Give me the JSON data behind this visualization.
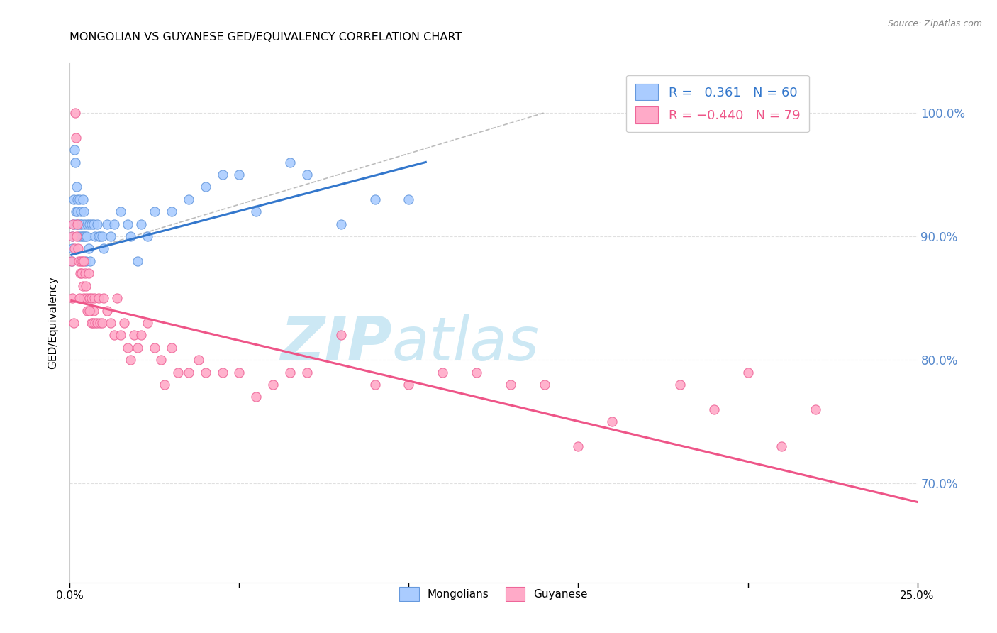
{
  "title": "MONGOLIAN VS GUYANESE GED/EQUIVALENCY CORRELATION CHART",
  "source": "Source: ZipAtlas.com",
  "ylabel": "GED/Equivalency",
  "yticks": [
    70.0,
    80.0,
    90.0,
    100.0
  ],
  "ytick_labels": [
    "70.0%",
    "80.0%",
    "90.0%",
    "100.0%"
  ],
  "xlim": [
    0.0,
    25.0
  ],
  "ylim": [
    62.0,
    104.0
  ],
  "mongolian_R": 0.361,
  "mongolian_N": 60,
  "guyanese_R": -0.44,
  "guyanese_N": 79,
  "mongolian_color": "#aaccff",
  "guyanese_color": "#ffaac8",
  "mongolian_edge_color": "#6699dd",
  "guyanese_edge_color": "#ee6699",
  "mongolian_line_color": "#3377cc",
  "guyanese_line_color": "#ee5588",
  "background_color": "#ffffff",
  "grid_color": "#dddddd",
  "watermark_color": "#cce8f4",
  "mongolian_line": {
    "x0": 0.05,
    "x1": 10.5,
    "y0": 88.5,
    "y1": 96.0
  },
  "guyanese_line": {
    "x0": 0.05,
    "x1": 25.0,
    "y0": 84.8,
    "y1": 68.5
  },
  "dash_line": {
    "x0": 0.05,
    "x1": 14.0,
    "y0": 88.5,
    "y1": 100.0
  },
  "mongolian_x": [
    0.05,
    0.07,
    0.08,
    0.1,
    0.12,
    0.13,
    0.15,
    0.17,
    0.18,
    0.2,
    0.22,
    0.23,
    0.25,
    0.27,
    0.28,
    0.3,
    0.32,
    0.33,
    0.35,
    0.37,
    0.38,
    0.4,
    0.42,
    0.43,
    0.45,
    0.47,
    0.5,
    0.52,
    0.55,
    0.57,
    0.6,
    0.65,
    0.7,
    0.75,
    0.8,
    0.85,
    0.9,
    0.95,
    1.0,
    1.1,
    1.2,
    1.3,
    1.5,
    1.7,
    1.8,
    2.0,
    2.1,
    2.3,
    2.5,
    3.0,
    3.5,
    4.0,
    4.5,
    5.0,
    5.5,
    6.5,
    7.0,
    8.0,
    9.0,
    10.0
  ],
  "mongolian_y": [
    88,
    90,
    89,
    91,
    93,
    97,
    96,
    92,
    91,
    94,
    93,
    92,
    91,
    90,
    93,
    91,
    90,
    92,
    91,
    90,
    93,
    92,
    90,
    91,
    90,
    88,
    90,
    91,
    89,
    91,
    88,
    91,
    91,
    90,
    91,
    90,
    90,
    90,
    89,
    91,
    90,
    91,
    92,
    91,
    90,
    88,
    91,
    90,
    92,
    92,
    93,
    94,
    95,
    95,
    92,
    96,
    95,
    91,
    93,
    93
  ],
  "guyanese_x": [
    0.05,
    0.08,
    0.1,
    0.13,
    0.15,
    0.17,
    0.2,
    0.22,
    0.25,
    0.27,
    0.3,
    0.32,
    0.35,
    0.37,
    0.38,
    0.4,
    0.42,
    0.45,
    0.47,
    0.5,
    0.52,
    0.55,
    0.57,
    0.6,
    0.63,
    0.65,
    0.68,
    0.7,
    0.73,
    0.75,
    0.8,
    0.85,
    0.9,
    0.95,
    1.0,
    1.1,
    1.2,
    1.3,
    1.4,
    1.5,
    1.6,
    1.7,
    1.8,
    1.9,
    2.0,
    2.1,
    2.3,
    2.5,
    2.7,
    3.0,
    3.2,
    3.5,
    3.8,
    4.0,
    4.5,
    5.0,
    5.5,
    6.0,
    7.0,
    8.0,
    9.0,
    10.0,
    11.0,
    12.0,
    13.0,
    14.0,
    15.0,
    16.0,
    18.0,
    19.0,
    20.0,
    21.0,
    22.0,
    0.07,
    0.12,
    0.28,
    0.58,
    2.8,
    6.5
  ],
  "guyanese_y": [
    88,
    90,
    91,
    89,
    100,
    98,
    90,
    91,
    89,
    88,
    87,
    88,
    87,
    88,
    86,
    85,
    88,
    87,
    86,
    85,
    84,
    87,
    85,
    84,
    83,
    85,
    83,
    84,
    85,
    83,
    83,
    85,
    83,
    83,
    85,
    84,
    83,
    82,
    85,
    82,
    83,
    81,
    80,
    82,
    81,
    82,
    83,
    81,
    80,
    81,
    79,
    79,
    80,
    79,
    79,
    79,
    77,
    78,
    79,
    82,
    78,
    78,
    79,
    79,
    78,
    78,
    73,
    75,
    78,
    76,
    79,
    73,
    76,
    85,
    83,
    85,
    84,
    78,
    79
  ]
}
